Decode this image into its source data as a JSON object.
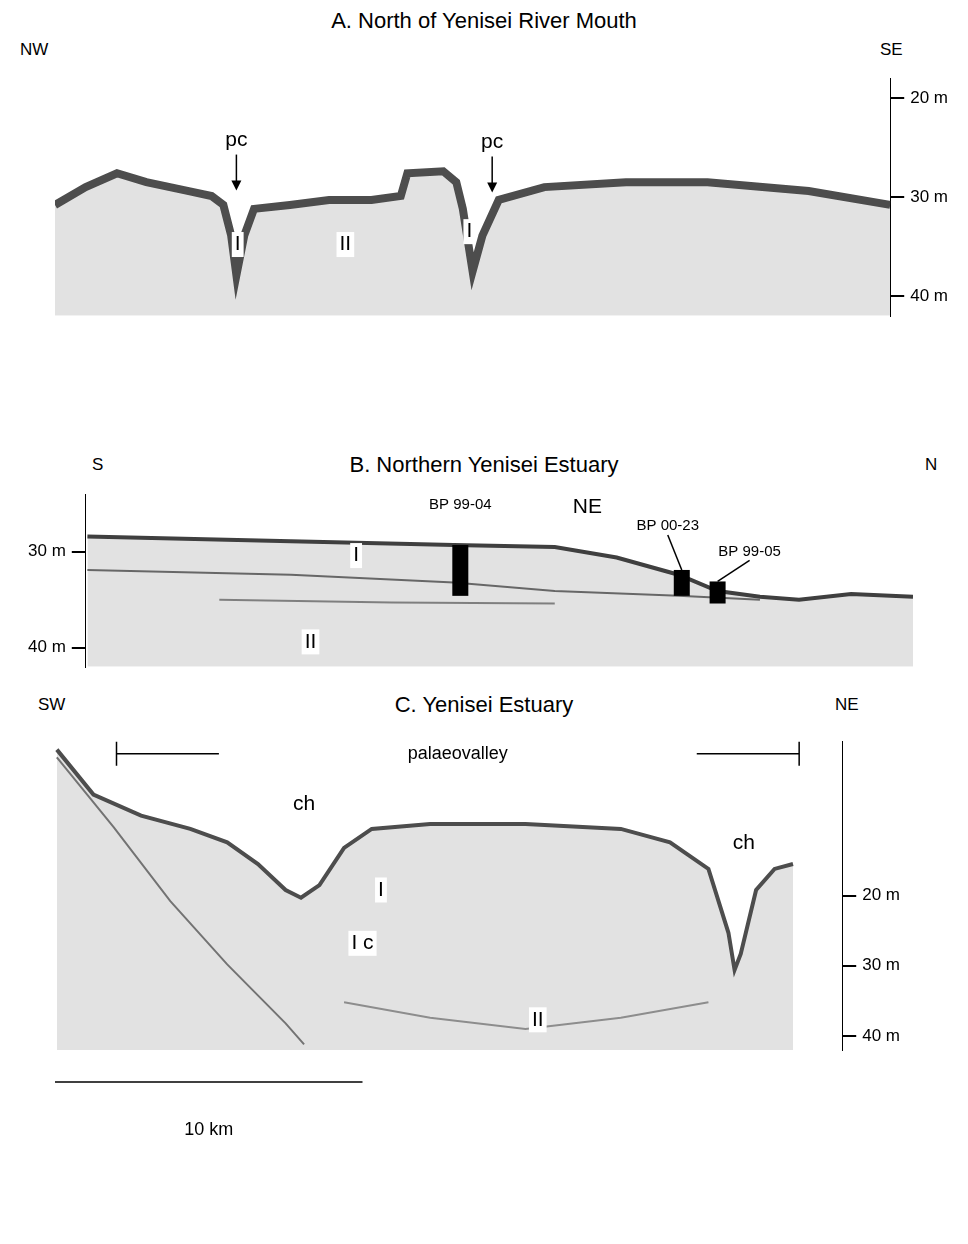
{
  "chart_data": [
    {
      "type": "line",
      "title": "A. North of Yenisei River Mouth",
      "left_label": "NW",
      "right_label": "SE",
      "xlim": [
        0,
        25.6
      ],
      "ylim": [
        18,
        42
      ],
      "yticks": [
        {
          "value": 20,
          "label": "20 m"
        },
        {
          "value": 30,
          "label": "30 m"
        },
        {
          "value": 40,
          "label": "40 m"
        }
      ],
      "grid": false,
      "tick_labels": "y",
      "series": [
        {
          "color": "#4d4d4d",
          "x": [
            0,
            0.94,
            1.9,
            2.8,
            4.1,
            4.8,
            5.16,
            5.4,
            5.56,
            5.8,
            6.1,
            7.2,
            8.4,
            9.7,
            10.6,
            10.8,
            11.9,
            12.3,
            12.5,
            12.8,
            13.1,
            13.6,
            15,
            17.5,
            20,
            23.1,
            25.6
          ],
          "values": [
            30.8,
            29,
            27.6,
            28.5,
            29.4,
            29.9,
            30.8,
            33.9,
            37.9,
            33.9,
            31.2,
            30.8,
            30.3,
            30.3,
            29.9,
            27.6,
            27.4,
            28.5,
            31.2,
            37.5,
            33.9,
            30.3,
            29,
            28.5,
            28.5,
            29.4,
            30.8
          ]
        }
      ],
      "annotations": [
        {
          "text": "pc",
          "x": 5.56,
          "y": 24.3,
          "marker": "arrow"
        },
        {
          "text": "I",
          "x": 5.6,
          "y": 34.8
        },
        {
          "text": "II",
          "x": 8.9,
          "y": 34.8
        },
        {
          "text": "pc",
          "x": 13.4,
          "y": 24.5,
          "marker": "arrow"
        },
        {
          "text": "I",
          "x": 12.7,
          "y": 33.5
        }
      ]
    },
    {
      "type": "line",
      "title": "B. Northern Yenisei Estuary",
      "left_label": "S",
      "right_label": "N",
      "xlim": [
        1.2,
        26.6
      ],
      "ylim": [
        24,
        42
      ],
      "yticks": [
        {
          "value": 30,
          "label": "30 m"
        },
        {
          "value": 40,
          "label": "40 m"
        }
      ],
      "grid": false,
      "tick_labels": "y",
      "series": [
        {
          "color": "#3f3f3f",
          "x": [
            1.25,
            7.5,
            12.5,
            15.6,
            17.5,
            19.4,
            20.6,
            21.9,
            23.1,
            24.7,
            26.6
          ],
          "values": [
            28.4,
            28.9,
            29.3,
            29.5,
            30.6,
            32.4,
            34.1,
            34.7,
            35,
            34.4,
            34.7
          ]
        },
        {
          "color": "#555555",
          "x": [
            1.25,
            7.5,
            12.5,
            15.6,
            19.4,
            21.9
          ],
          "values": [
            31.9,
            32.4,
            33.2,
            34.1,
            34.6,
            35
          ]
        },
        {
          "color": "#777777",
          "x": [
            5.3,
            10.6,
            15.6
          ],
          "values": [
            35,
            35.3,
            35.4
          ]
        }
      ],
      "cores": [
        {
          "label": "BP 99-04",
          "x": 12.7,
          "top": 29.3,
          "bottom": 34.6
        },
        {
          "label": "BP 00-23",
          "x": 19.5,
          "top": 31.9,
          "bottom": 34.6
        },
        {
          "label": "BP 99-05",
          "x": 20.6,
          "top": 33.1,
          "bottom": 35.4
        }
      ],
      "annotations": [
        {
          "text": "I",
          "x": 9.5,
          "y": 30.4
        },
        {
          "text": "II",
          "x": 8.1,
          "y": 39.4
        },
        {
          "text": "NE",
          "x": 16.6,
          "y": 25.4
        }
      ]
    },
    {
      "type": "line",
      "title": "C. Yenisei Estuary",
      "left_label": "SW",
      "right_label": "NE",
      "xlim": [
        0,
        25.6
      ],
      "ylim": [
        -2,
        42
      ],
      "yticks": [
        {
          "value": 20,
          "label": "20 m"
        },
        {
          "value": 30,
          "label": "30 m"
        },
        {
          "value": 40,
          "label": "40 m"
        }
      ],
      "grid": false,
      "tick_labels": "y",
      "series": [
        {
          "color": "#4d4d4d",
          "x": [
            0.06,
            1.25,
            2.8,
            4.4,
            5.6,
            6.6,
            7.5,
            8.0,
            8.6,
            9.4,
            10.3,
            12.2,
            15.3,
            18.4,
            20.0,
            21.25,
            21.9,
            22.1,
            22.3,
            22.8,
            23.4,
            24.0
          ],
          "values": [
            -0.8,
            5.6,
            8.6,
            10.5,
            12.4,
            15.5,
            19.2,
            20.3,
            18.5,
            13.2,
            10.5,
            9.8,
            9.8,
            10.5,
            12.4,
            16.2,
            25.3,
            30.6,
            28.3,
            19.2,
            16.2,
            15.5
          ]
        },
        {
          "color": "#666666",
          "x": [
            0.06,
            1.9,
            3.75,
            5.6,
            7.5,
            8.1
          ],
          "values": [
            0.3,
            10.2,
            20.8,
            29.8,
            38.2,
            41.2
          ]
        },
        {
          "color": "#8a8a8a",
          "x": [
            9.4,
            12.2,
            15.3,
            18.4,
            21.25
          ],
          "values": [
            35.2,
            37.4,
            39,
            37.4,
            35.2
          ]
        }
      ],
      "annotations": [
        {
          "text": "palaeovalley",
          "x": [
            2.0,
            24.2
          ],
          "y": -0.2
        },
        {
          "text": "ch",
          "x": 8.1,
          "y": 7.0
        },
        {
          "text": "ch",
          "x": 22.4,
          "y": 12.5
        },
        {
          "text": "I",
          "x": 10.6,
          "y": 19.2
        },
        {
          "text": "I c",
          "x": 10.0,
          "y": 26.8
        },
        {
          "text": "II",
          "x": 15.7,
          "y": 37.7
        }
      ],
      "scale_bar": {
        "value": 10,
        "label": "10 km"
      }
    }
  ]
}
